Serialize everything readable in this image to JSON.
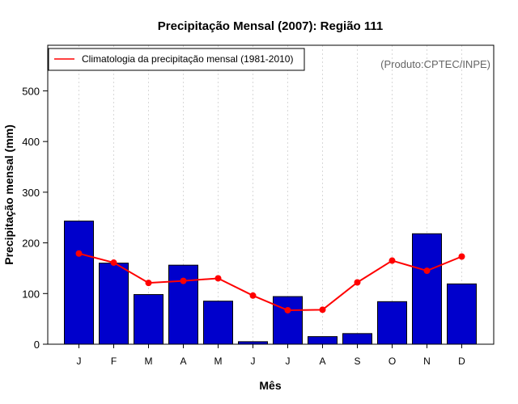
{
  "chart_data": {
    "type": "bar",
    "title": "Precipitação Mensal (2007): Região 111",
    "xlabel": "Mês",
    "ylabel": "Precipitação mensal (mm)",
    "ylim": [
      0,
      590
    ],
    "yticks": [
      0,
      100,
      200,
      300,
      400,
      500
    ],
    "categories": [
      "J",
      "F",
      "M",
      "A",
      "M",
      "J",
      "J",
      "A",
      "S",
      "O",
      "N",
      "D"
    ],
    "series": [
      {
        "name": "Precipitação mensal 2007",
        "type": "bar",
        "color": "#0000cc",
        "values": [
          243,
          160,
          98,
          156,
          85,
          5,
          94,
          15,
          21,
          84,
          218,
          119
        ]
      },
      {
        "name": "Climatologia da precipitação mensal (1981-2010)",
        "type": "line",
        "color": "#ff0000",
        "values": [
          179,
          161,
          121,
          125,
          130,
          96,
          67,
          68,
          122,
          165,
          145,
          173
        ]
      }
    ],
    "legend": {
      "entries": [
        "Climatologia da precipitação mensal (1981-2010)"
      ],
      "position": "top-left"
    },
    "annotation": "(Produto:CPTEC/INPE)",
    "grid": "vertical dotted"
  }
}
